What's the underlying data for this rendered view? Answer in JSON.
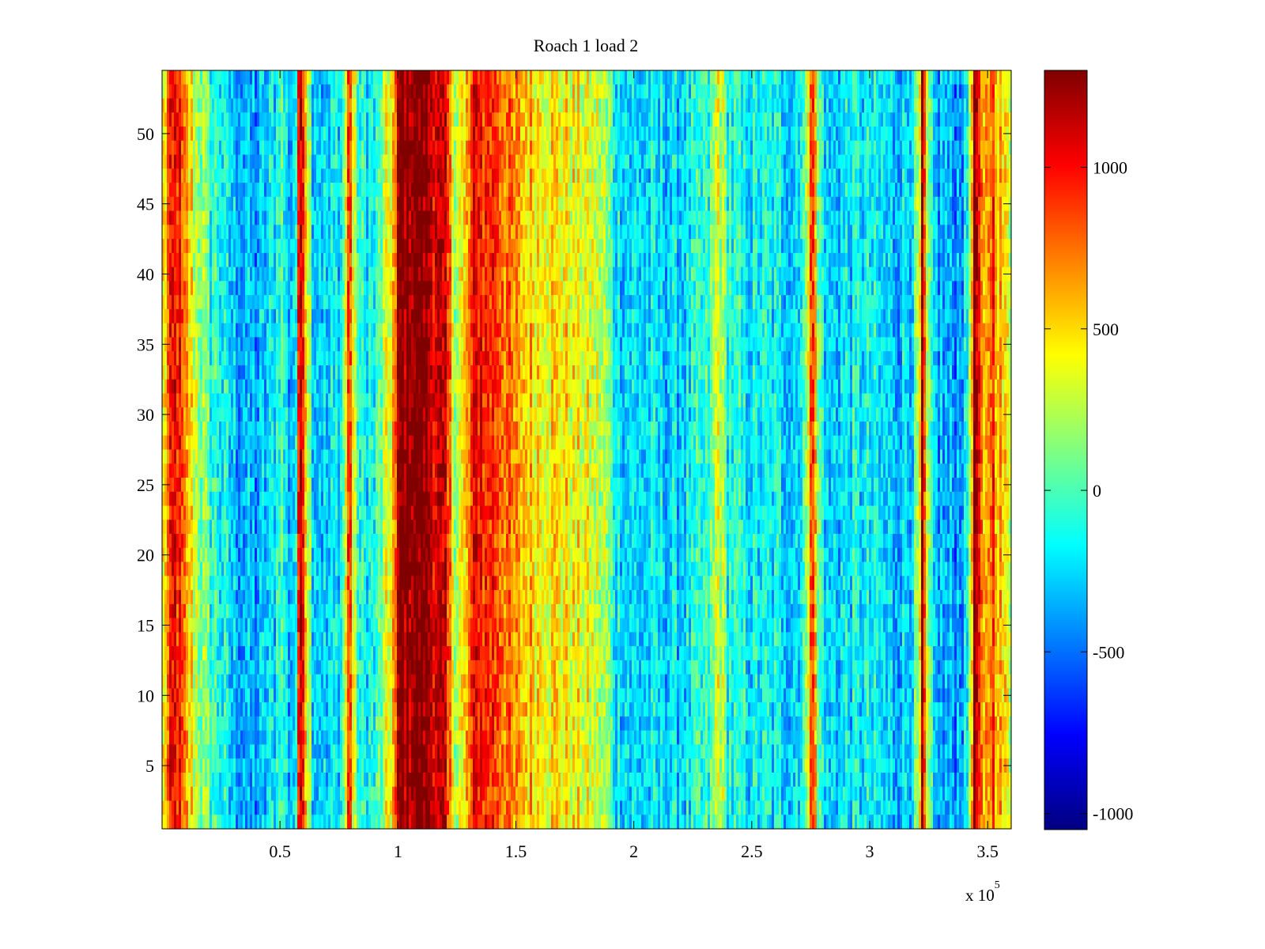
{
  "chart_data": {
    "type": "heatmap",
    "title": "Roach 1 load 2",
    "xlabel": "",
    "ylabel": "",
    "x_exponent_label": {
      "base": "x 10",
      "power": "5"
    },
    "xlim": [
      0,
      360000
    ],
    "ylim": [
      0.5,
      54.5
    ],
    "x_ticks": [
      50000,
      100000,
      150000,
      200000,
      250000,
      300000,
      350000
    ],
    "x_tick_labels": [
      "0.5",
      "1",
      "1.5",
      "2",
      "2.5",
      "3",
      "3.5"
    ],
    "y_ticks": [
      5,
      10,
      15,
      20,
      25,
      30,
      35,
      40,
      45,
      50
    ],
    "y_tick_labels": [
      "5",
      "10",
      "15",
      "20",
      "25",
      "30",
      "35",
      "40",
      "45",
      "50"
    ],
    "rows": 54,
    "colormap": "jet",
    "clim": [
      -1050,
      1300
    ],
    "colorbar": {
      "ticks": [
        -1000,
        -500,
        0,
        500,
        1000
      ],
      "tick_labels": [
        "-1000",
        "-500",
        "0",
        "500",
        "1000"
      ]
    },
    "column_profile": {
      "x": [
        0,
        3000,
        6000,
        10000,
        15000,
        20000,
        30000,
        40000,
        48000,
        50000,
        54000,
        57000,
        58000,
        59500,
        61000,
        64000,
        70000,
        76000,
        78000,
        79500,
        81000,
        84000,
        90000,
        95000,
        99000,
        100500,
        104000,
        110000,
        116000,
        120000,
        122000,
        124000,
        128000,
        131000,
        134000,
        137000,
        140000,
        145000,
        150000,
        160000,
        170000,
        180000,
        188000,
        192000,
        200000,
        220000,
        232000,
        236000,
        240000,
        250000,
        262000,
        268000,
        273000,
        275500,
        278000,
        282000,
        290000,
        300000,
        310000,
        318000,
        321000,
        322500,
        324000,
        327000,
        335000,
        341000,
        343000,
        344500,
        346000,
        348000,
        352000,
        356000,
        360000
      ],
      "value": [
        300,
        800,
        1050,
        600,
        250,
        0,
        -300,
        -400,
        -200,
        50,
        -350,
        -100,
        1000,
        1280,
        600,
        -200,
        -300,
        -150,
        400,
        1100,
        350,
        -150,
        -150,
        250,
        700,
        1320,
        1300,
        1350,
        1150,
        1000,
        700,
        300,
        400,
        800,
        1100,
        900,
        950,
        800,
        600,
        500,
        450,
        350,
        200,
        -150,
        -250,
        -250,
        -100,
        400,
        -100,
        -200,
        -200,
        -250,
        0,
        1200,
        100,
        -300,
        -200,
        -200,
        -300,
        -200,
        200,
        1280,
        250,
        -300,
        -400,
        -300,
        500,
        1300,
        1100,
        400,
        900,
        500,
        300
      ]
    },
    "legend": "colorbar-right",
    "grid": false
  }
}
